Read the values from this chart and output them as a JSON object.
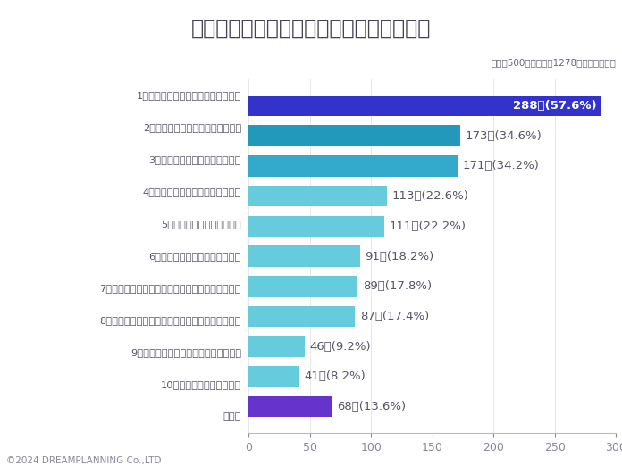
{
  "title": "いじめ撲滅には何が有効だと思いますか？",
  "subtitle": "（ｎ＝500　総回答数1278　複数回答可）",
  "categories": [
    "1位：加害児童に対する処分の厳罰化",
    "2位：スクールカウンセラーを充実",
    "3位：親子で対話する時間を確保",
    "4位：親が子供を叱れるように指導",
    "5位：道徳教育の時間を充実",
    "6位：いじめ対策予算の大幅増額",
    "7位：いじめを隠蔽した学校関係者などを徹底報道",
    "8位：いじめが発生した学校関係者などを厳罰処分",
    "9位：加害者に対する教師の体罰を許容",
    "10位：軽度の体罰を合法化",
    "その他"
  ],
  "values": [
    288,
    173,
    171,
    113,
    111,
    91,
    89,
    87,
    46,
    41,
    68
  ],
  "labels": [
    "288人(57.6%)",
    "173人(34.6%)",
    "171人(34.2%)",
    "113人(22.6%)",
    "111人(22.2%)",
    "91人(18.2%)",
    "89人(17.8%)",
    "87人(17.4%)",
    "46人(9.2%)",
    "41人(8.2%)",
    "68人(13.6%)"
  ],
  "bar_colors": [
    "#3333cc",
    "#2299bb",
    "#33aacc",
    "#66ccdd",
    "#66ccdd",
    "#66ccdd",
    "#66ccdd",
    "#66ccdd",
    "#66ccdd",
    "#66ccdd",
    "#6633cc"
  ],
  "label_colors": [
    "#ffffff",
    "#555566",
    "#555566",
    "#555566",
    "#555566",
    "#555566",
    "#555566",
    "#555566",
    "#555566",
    "#555566",
    "#555566"
  ],
  "xlim": [
    0,
    300
  ],
  "xticks": [
    0,
    50,
    100,
    150,
    200,
    250,
    300
  ],
  "title_bg_color": "#dde8f5",
  "title_text_color": "#444455",
  "bg_color": "#ffffff",
  "copyright": "©2024 DREAMPLANNING Co.,LTD",
  "label_inside_color": "#ffffff",
  "label_outside_color": "#555566"
}
